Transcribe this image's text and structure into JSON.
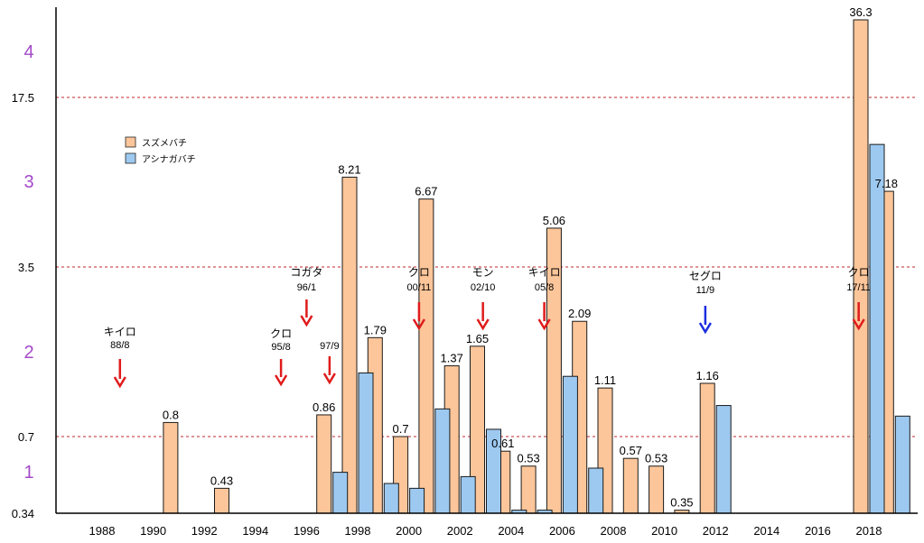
{
  "chart_data": {
    "type": "bar",
    "y_scale": "piecewise-log",
    "grid": "dashed-red-horizontal",
    "legend_position": "top-left",
    "x_ticks": [
      "1988",
      "1990",
      "1992",
      "1994",
      "1996",
      "1998",
      "2000",
      "2002",
      "2004",
      "2006",
      "2008",
      "2010",
      "2012",
      "2014",
      "2016",
      "2018"
    ],
    "y_ticks_numeric": [
      "0.34",
      "0.7",
      "3.5",
      "17.5"
    ],
    "y_ticks_level": [
      "1",
      "2",
      "3",
      "4"
    ],
    "series": [
      {
        "name": "スズメバチ",
        "color": "#fdc69a",
        "data": [
          {
            "year": 1991,
            "value": 0.8,
            "label": "0.8"
          },
          {
            "year": 1993,
            "value": 0.43,
            "label": "0.43"
          },
          {
            "year": 1997,
            "value": 0.86,
            "label": "0.86"
          },
          {
            "year": 1998,
            "value": 8.21,
            "label": "8.21"
          },
          {
            "year": 1999,
            "value": 1.79,
            "label": "1.79"
          },
          {
            "year": 2000,
            "value": 0.7,
            "label": "0.7"
          },
          {
            "year": 2001,
            "value": 6.67,
            "label": "6.67"
          },
          {
            "year": 2002,
            "value": 1.37,
            "label": "1.37"
          },
          {
            "year": 2003,
            "value": 1.65,
            "label": "1.65"
          },
          {
            "year": 2004,
            "value": 0.61,
            "label": "0.61"
          },
          {
            "year": 2005,
            "value": 0.53,
            "label": "0.53"
          },
          {
            "year": 2006,
            "value": 5.06,
            "label": "5.06"
          },
          {
            "year": 2007,
            "value": 2.09,
            "label": "2.09"
          },
          {
            "year": 2008,
            "value": 1.11,
            "label": "1.11"
          },
          {
            "year": 2009,
            "value": 0.57,
            "label": "0.57"
          },
          {
            "year": 2010,
            "value": 0.53,
            "label": "0.53"
          },
          {
            "year": 2011,
            "value": 0.35,
            "label": "0.35"
          },
          {
            "year": 2012,
            "value": 1.16,
            "label": "1.16"
          },
          {
            "year": 2018,
            "value": 36.3,
            "label": "36.3"
          },
          {
            "year": 2019,
            "value": 7.18,
            "label": "7.18"
          }
        ]
      },
      {
        "name": "アシナガバチ",
        "color": "#9dc9f0",
        "data": [
          {
            "year": 1997,
            "value": 0.5
          },
          {
            "year": 1998,
            "value": 1.28
          },
          {
            "year": 1999,
            "value": 0.45
          },
          {
            "year": 2000,
            "value": 0.43
          },
          {
            "year": 2001,
            "value": 0.91
          },
          {
            "year": 2002,
            "value": 0.48
          },
          {
            "year": 2003,
            "value": 0.75
          },
          {
            "year": 2004,
            "value": 0.35
          },
          {
            "year": 2005,
            "value": 0.35
          },
          {
            "year": 2006,
            "value": 1.24
          },
          {
            "year": 2007,
            "value": 0.52
          },
          {
            "year": 2012,
            "value": 0.94
          },
          {
            "year": 2018,
            "value": 11.2
          },
          {
            "year": 2019,
            "value": 0.85
          }
        ]
      }
    ],
    "annotations": [
      {
        "name": "キイロ",
        "date": "88/8",
        "year": 1988.7,
        "color": "#e01b1b"
      },
      {
        "name": "クロ",
        "date": "95/8",
        "year": 1995.0,
        "color": "#e01b1b"
      },
      {
        "name": "コガタ",
        "date": "96/1",
        "year": 1996.0,
        "color": "#e01b1b"
      },
      {
        "name": "",
        "date": "97/9",
        "year": 1996.9,
        "color": "#e01b1b"
      },
      {
        "name": "クロ",
        "date": "00/11",
        "year": 2000.4,
        "color": "#e01b1b"
      },
      {
        "name": "モン",
        "date": "02/10",
        "year": 2002.9,
        "color": "#e01b1b"
      },
      {
        "name": "キイロ",
        "date": "05/8",
        "year": 2005.3,
        "color": "#e01b1b"
      },
      {
        "name": "セグロ",
        "date": "11/9",
        "year": 2011.6,
        "color": "#1b2de0"
      },
      {
        "name": "クロ",
        "date": "17/11",
        "year": 2017.6,
        "color": "#e01b1b"
      }
    ]
  }
}
